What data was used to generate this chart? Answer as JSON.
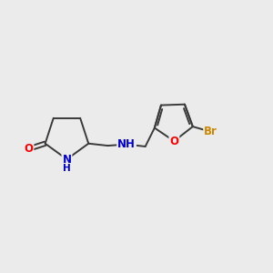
{
  "background_color": "#ebebeb",
  "bond_color": "#3a3a3a",
  "atom_colors": {
    "O": "#ff0000",
    "N": "#0000cc",
    "Br": "#cc8800",
    "C": "#3a3a3a"
  },
  "figsize": [
    3.0,
    3.0
  ],
  "dpi": 100
}
